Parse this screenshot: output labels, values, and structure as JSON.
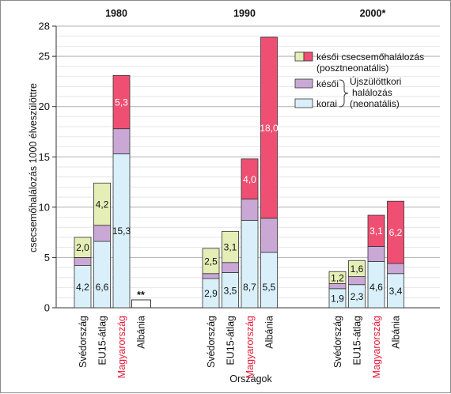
{
  "chart_data": {
    "type": "bar",
    "stacked": true,
    "ylabel": "csecsemőhalálozás 1000 élveszülöttre",
    "xlabel": "Országok",
    "ylim": [
      0,
      28
    ],
    "yticks": [
      0,
      5,
      10,
      15,
      20,
      25,
      28
    ],
    "grid": true,
    "legend_position": "top-right",
    "series_colors": {
      "korai": "#d9f0fb",
      "kesoi": "#c9a8d6",
      "poszt_1980": "#e5eeb6",
      "poszt_red": "#ef4f72"
    },
    "groups": [
      {
        "year": "1980",
        "bars": [
          {
            "category": "Svédország",
            "korai": 4.2,
            "kesoi": 0.8,
            "poszt": 2.0,
            "labels": [
              "4,2",
              "",
              "2,0"
            ],
            "poszt_color": "green",
            "highlight": false
          },
          {
            "category": "EU15-átlag",
            "korai": 6.6,
            "kesoi": 1.6,
            "poszt": 4.2,
            "labels": [
              "6,6",
              "",
              "4,2"
            ],
            "poszt_color": "green",
            "highlight": false
          },
          {
            "category": "Magyarország",
            "korai": 15.3,
            "kesoi": 2.5,
            "poszt": 5.3,
            "labels": [
              "15,3",
              "",
              "5,3"
            ],
            "poszt_color": "red",
            "highlight": true
          },
          {
            "category": "Albánia",
            "korai": null,
            "kesoi": null,
            "poszt": null,
            "labels": [],
            "missing_mark": "**",
            "highlight": false
          }
        ]
      },
      {
        "year": "1990",
        "bars": [
          {
            "category": "Svédország",
            "korai": 2.9,
            "kesoi": 0.5,
            "poszt": 2.5,
            "labels": [
              "2,9",
              "",
              "2,5"
            ],
            "poszt_color": "green",
            "highlight": false
          },
          {
            "category": "EU15-átlag",
            "korai": 3.5,
            "kesoi": 1.0,
            "poszt": 3.1,
            "labels": [
              "3,5",
              "",
              "3,1"
            ],
            "poszt_color": "green",
            "highlight": false
          },
          {
            "category": "Magyarország",
            "korai": 8.7,
            "kesoi": 2.1,
            "poszt": 4.0,
            "labels": [
              "8,7",
              "",
              "4,0"
            ],
            "poszt_color": "red",
            "highlight": true
          },
          {
            "category": "Albánia",
            "korai": 5.5,
            "kesoi": 3.4,
            "poszt": 18.0,
            "labels": [
              "5,5",
              "",
              "18,0"
            ],
            "poszt_color": "red",
            "highlight": false
          }
        ]
      },
      {
        "year": "2000*",
        "bars": [
          {
            "category": "Svédország",
            "korai": 1.9,
            "kesoi": 0.5,
            "poszt": 1.2,
            "labels": [
              "1,9",
              "",
              "1,2"
            ],
            "poszt_color": "green",
            "highlight": false
          },
          {
            "category": "EU15-átlag",
            "korai": 2.3,
            "kesoi": 0.8,
            "poszt": 1.6,
            "labels": [
              "2,3",
              "",
              "1,6"
            ],
            "poszt_color": "green",
            "highlight": false
          },
          {
            "category": "Magyarország",
            "korai": 4.6,
            "kesoi": 1.5,
            "poszt": 3.1,
            "labels": [
              "4,6",
              "",
              "3,1"
            ],
            "poszt_color": "red",
            "highlight": true
          },
          {
            "category": "Albánia",
            "korai": 3.4,
            "kesoi": 1.0,
            "poszt": 6.2,
            "labels": [
              "3,4",
              "",
              "6,2"
            ],
            "poszt_color": "red",
            "highlight": false
          }
        ]
      }
    ],
    "legend": {
      "poszt_label": "késői csecsemőhalálozás",
      "poszt_sub": "(posztneonatális)",
      "kesoi_label": "késői",
      "korai_label": "korai",
      "neo_line1": "Újszülöttkori",
      "neo_line2": "halálozás",
      "neo_line3": "(neonatális)"
    }
  }
}
